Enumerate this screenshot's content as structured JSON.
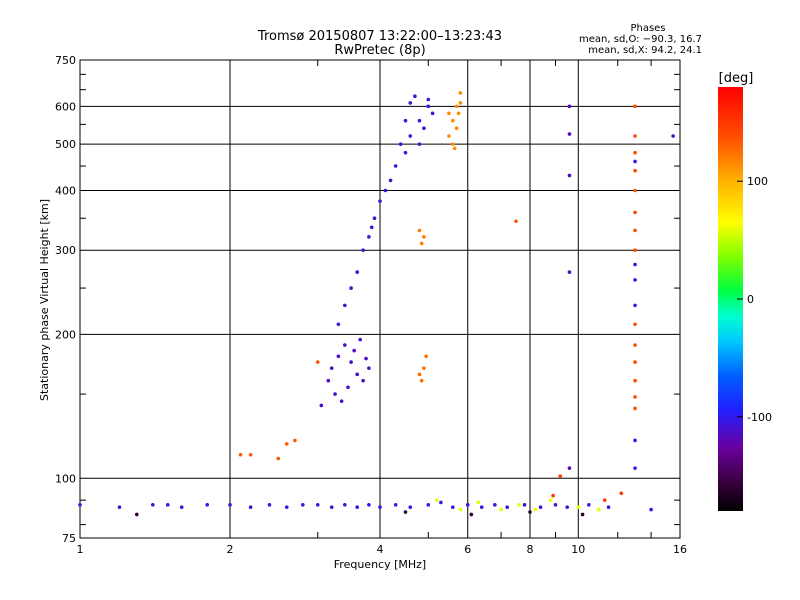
{
  "chart_data": {
    "type": "scatter",
    "title": "Tromsø 20150807 13:22:00–13:23:43",
    "subtitle": "RwPretec (8p)",
    "xlabel": "Frequency [MHz]",
    "ylabel": "Stationary phase Virtual Height [km]",
    "x_scale": "log",
    "y_scale": "log",
    "xlim": [
      1,
      16
    ],
    "ylim": [
      75,
      750
    ],
    "x_ticks": [
      1,
      2,
      4,
      6,
      8,
      10,
      16
    ],
    "x_minor_ticks": [
      3,
      5,
      7,
      9,
      12,
      14
    ],
    "y_ticks": [
      75,
      100,
      200,
      300,
      400,
      500,
      600,
      750
    ],
    "y_minor_ticks": [
      80,
      90,
      150,
      250,
      350,
      450,
      550,
      650,
      700
    ],
    "grid": true,
    "stats_panel": {
      "heading": "Phases",
      "line_o": "mean, sd,O: −90.3, 16.7",
      "line_x": "mean, sd,X:  94.2, 24.1"
    },
    "colorbar": {
      "label": "[deg]",
      "range": [
        -180,
        180
      ],
      "ticks": [
        100,
        0,
        -100
      ]
    },
    "clusters": [
      {
        "points": [
          [
            4.6,
            520
          ],
          [
            4.8,
            560
          ],
          [
            5.0,
            600
          ],
          [
            4.5,
            480
          ],
          [
            4.9,
            540
          ],
          [
            4.7,
            630
          ],
          [
            5.1,
            580
          ],
          [
            4.4,
            500
          ],
          [
            4.6,
            610
          ],
          [
            5.0,
            620
          ],
          [
            4.8,
            500
          ],
          [
            4.5,
            560
          ]
        ],
        "phase": -105
      },
      {
        "points": [
          [
            4.0,
            380
          ],
          [
            3.9,
            350
          ],
          [
            3.8,
            320
          ],
          [
            3.7,
            300
          ],
          [
            3.6,
            270
          ],
          [
            3.5,
            250
          ],
          [
            3.4,
            230
          ],
          [
            3.3,
            210
          ],
          [
            4.2,
            420
          ],
          [
            4.3,
            450
          ],
          [
            4.1,
            400
          ],
          [
            3.85,
            335
          ]
        ],
        "phase": -110
      },
      {
        "points": [
          [
            3.2,
            170
          ],
          [
            3.3,
            180
          ],
          [
            3.4,
            190
          ],
          [
            3.5,
            175
          ],
          [
            3.6,
            165
          ],
          [
            3.7,
            160
          ],
          [
            3.8,
            170
          ],
          [
            3.25,
            150
          ],
          [
            3.35,
            145
          ],
          [
            3.45,
            155
          ],
          [
            3.55,
            185
          ],
          [
            3.65,
            195
          ],
          [
            3.75,
            178
          ],
          [
            3.15,
            160
          ],
          [
            3.05,
            142
          ]
        ],
        "phase": -112
      },
      {
        "points": [
          [
            5.5,
            520
          ],
          [
            5.6,
            560
          ],
          [
            5.7,
            600
          ],
          [
            5.8,
            640
          ],
          [
            5.6,
            500
          ],
          [
            5.7,
            540
          ],
          [
            5.5,
            580
          ],
          [
            5.8,
            610
          ],
          [
            5.65,
            490
          ],
          [
            5.75,
            580
          ]
        ],
        "phase": 115
      },
      {
        "points": [
          [
            4.8,
            330
          ],
          [
            4.9,
            320
          ],
          [
            4.85,
            310
          ]
        ],
        "phase": 120
      },
      {
        "points": [
          [
            4.8,
            165
          ],
          [
            4.9,
            170
          ],
          [
            4.95,
            180
          ],
          [
            4.85,
            160
          ]
        ],
        "phase": 125
      },
      {
        "points": [
          [
            9.6,
            600
          ],
          [
            9.6,
            525
          ],
          [
            9.6,
            430
          ],
          [
            9.6,
            270
          ],
          [
            9.6,
            105
          ],
          [
            15.5,
            520
          ]
        ],
        "phase": -115
      },
      {
        "points": [
          [
            13.0,
            600
          ],
          [
            13.0,
            520
          ],
          [
            13.0,
            480
          ],
          [
            13.0,
            440
          ],
          [
            13.0,
            400
          ],
          [
            13.0,
            360
          ],
          [
            13.0,
            330
          ],
          [
            13.0,
            300
          ],
          [
            13.0,
            210
          ],
          [
            13.0,
            190
          ],
          [
            13.0,
            175
          ],
          [
            13.0,
            160
          ],
          [
            13.0,
            148
          ],
          [
            13.0,
            140
          ]
        ],
        "phase": 140
      },
      {
        "points": [
          [
            13.0,
            460
          ],
          [
            13.0,
            280
          ],
          [
            13.0,
            260
          ],
          [
            13.0,
            230
          ],
          [
            13.0,
            120
          ],
          [
            13.0,
            105
          ]
        ],
        "phase": -100
      },
      {
        "points": [
          [
            2.1,
            112
          ],
          [
            2.2,
            112
          ],
          [
            2.6,
            118
          ],
          [
            2.5,
            110
          ],
          [
            2.7,
            120
          ],
          [
            3.0,
            175
          ],
          [
            7.5,
            345
          ]
        ],
        "phase": 135
      },
      {
        "points": [
          [
            1.0,
            88
          ],
          [
            1.2,
            87
          ],
          [
            1.4,
            88
          ],
          [
            1.5,
            88
          ],
          [
            1.6,
            87
          ],
          [
            1.8,
            88
          ],
          [
            2.0,
            88
          ],
          [
            2.2,
            87
          ],
          [
            2.4,
            88
          ],
          [
            2.6,
            87
          ],
          [
            2.8,
            88
          ],
          [
            3.0,
            88
          ],
          [
            3.2,
            87
          ],
          [
            3.4,
            88
          ],
          [
            3.6,
            87
          ],
          [
            3.8,
            88
          ],
          [
            4.0,
            87
          ],
          [
            4.3,
            88
          ],
          [
            4.6,
            87
          ],
          [
            5.0,
            88
          ],
          [
            5.3,
            89
          ],
          [
            5.6,
            87
          ],
          [
            6.0,
            88
          ],
          [
            6.4,
            87
          ],
          [
            6.8,
            88
          ],
          [
            7.2,
            87
          ],
          [
            7.8,
            88
          ],
          [
            8.4,
            87
          ],
          [
            9.0,
            88
          ],
          [
            9.5,
            87
          ],
          [
            10.5,
            88
          ],
          [
            11.5,
            87
          ],
          [
            14.0,
            86
          ]
        ],
        "phase": -105
      },
      {
        "points": [
          [
            5.2,
            90
          ],
          [
            5.8,
            86
          ],
          [
            6.3,
            89
          ],
          [
            7.0,
            86
          ],
          [
            7.6,
            88
          ],
          [
            8.2,
            86
          ],
          [
            8.8,
            90
          ],
          [
            10.0,
            87
          ],
          [
            11.0,
            86
          ]
        ],
        "phase": 60
      },
      {
        "points": [
          [
            4.5,
            85
          ],
          [
            6.1,
            84
          ],
          [
            8.0,
            85
          ],
          [
            10.2,
            84
          ],
          [
            1.3,
            84
          ]
        ],
        "phase": -160
      },
      {
        "points": [
          [
            12.2,
            93
          ],
          [
            11.3,
            90
          ],
          [
            9.2,
            101
          ],
          [
            8.9,
            92
          ]
        ],
        "phase": 150
      }
    ]
  }
}
